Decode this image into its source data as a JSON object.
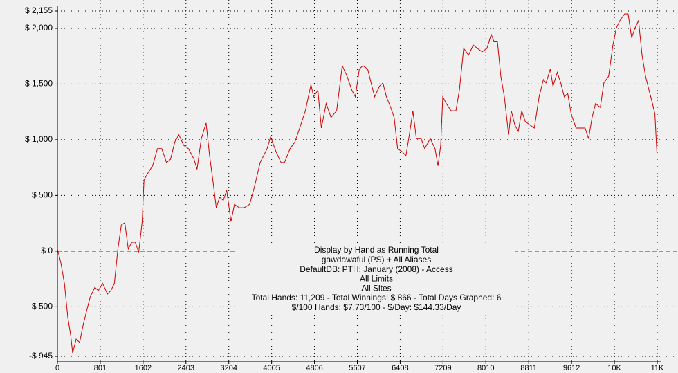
{
  "chart_data": {
    "type": "line",
    "annotations": [
      "Display by Hand as Running Total",
      "gawdawaful (PS) + All Aliases",
      "DefaultDB: PTH: January (2008) - Access",
      "All Limits",
      "All Sites",
      "Total Hands: 11,209 - Total Winnings: $ 866 - Total Days Graphed: 6",
      "$/100 Hands: $7.73/100 - $/Day: $144.33/Day"
    ],
    "color": "#cc0000",
    "grid": true,
    "xlim": [
      0,
      11214
    ],
    "ylim": [
      -945,
      2155
    ],
    "xticks": [
      0,
      801,
      1602,
      2403,
      3204,
      4005,
      4806,
      5607,
      6408,
      7209,
      8010,
      8811,
      9612,
      {
        "value": 10413,
        "label": "10K"
      },
      {
        "value": 11214,
        "label": "11K"
      }
    ],
    "yticks": [
      {
        "value": -945,
        "label": "-$ 945"
      },
      {
        "value": -500,
        "label": "-$ 500"
      },
      {
        "value": 0,
        "label": "$ 0"
      },
      {
        "value": 500,
        "label": "$ 500"
      },
      {
        "value": 1000,
        "label": "$ 1,000"
      },
      {
        "value": 1500,
        "label": "$ 1,500"
      },
      {
        "value": 2000,
        "label": "$ 2,000"
      },
      {
        "value": 2155,
        "label": "$ 2,155"
      }
    ],
    "x": [
      0,
      65,
      130,
      195,
      250,
      285,
      350,
      415,
      480,
      545,
      610,
      700,
      765,
      845,
      935,
      1000,
      1065,
      1130,
      1195,
      1260,
      1325,
      1390,
      1455,
      1520,
      1585,
      1620,
      1690,
      1780,
      1870,
      1950,
      2040,
      2115,
      2195,
      2270,
      2360,
      2450,
      2555,
      2610,
      2690,
      2780,
      2845,
      2905,
      2970,
      3035,
      3100,
      3165,
      3245,
      3310,
      3400,
      3490,
      3595,
      3685,
      3790,
      3920,
      3985,
      4090,
      4180,
      4245,
      4350,
      4440,
      4530,
      4635,
      4740,
      4790,
      4870,
      4935,
      5025,
      5115,
      5220,
      5325,
      5415,
      5505,
      5570,
      5645,
      5710,
      5800,
      5865,
      5930,
      6020,
      6085,
      6150,
      6230,
      6295,
      6360,
      6450,
      6515,
      6580,
      6645,
      6710,
      6800,
      6865,
      6970,
      7060,
      7115,
      7165,
      7205,
      7270,
      7360,
      7450,
      7515,
      7595,
      7685,
      7775,
      7850,
      7940,
      8030,
      8110,
      8160,
      8225,
      8290,
      8355,
      8435,
      8485,
      8550,
      8615,
      8680,
      8745,
      8825,
      8915,
      9005,
      9085,
      9135,
      9215,
      9265,
      9345,
      9410,
      9475,
      9540,
      9605,
      9695,
      9785,
      9865,
      9930,
      9995,
      10060,
      10150,
      10215,
      10305,
      10385,
      10450,
      10515,
      10605,
      10670,
      10735,
      10800,
      10865,
      10930,
      10995,
      11060,
      11125,
      11170,
      11209
    ],
    "values": [
      20,
      -105,
      -290,
      -600,
      -760,
      -915,
      -790,
      -820,
      -665,
      -540,
      -415,
      -325,
      -355,
      -290,
      -385,
      -355,
      -290,
      20,
      235,
      255,
      20,
      80,
      80,
      -10,
      265,
      640,
      700,
      765,
      920,
      920,
      795,
      825,
      980,
      1045,
      950,
      920,
      825,
      735,
      1010,
      1150,
      855,
      640,
      390,
      485,
      455,
      545,
      265,
      420,
      390,
      390,
      420,
      580,
      795,
      920,
      1025,
      890,
      795,
      795,
      920,
      980,
      1105,
      1260,
      1495,
      1385,
      1445,
      1105,
      1325,
      1200,
      1260,
      1665,
      1570,
      1445,
      1385,
      1635,
      1665,
      1635,
      1510,
      1385,
      1480,
      1510,
      1385,
      1290,
      1200,
      920,
      890,
      855,
      1045,
      1260,
      1010,
      1010,
      920,
      1010,
      920,
      765,
      950,
      1385,
      1325,
      1260,
      1260,
      1445,
      1820,
      1760,
      1850,
      1820,
      1790,
      1820,
      1945,
      1885,
      1885,
      1570,
      1385,
      1045,
      1260,
      1135,
      1075,
      1260,
      1165,
      1135,
      1105,
      1385,
      1540,
      1510,
      1635,
      1480,
      1605,
      1510,
      1385,
      1415,
      1230,
      1105,
      1105,
      1105,
      1010,
      1200,
      1325,
      1290,
      1510,
      1570,
      1850,
      2005,
      2070,
      2130,
      2130,
      1915,
      2005,
      2070,
      1760,
      1570,
      1445,
      1325,
      1230,
      866
    ]
  }
}
